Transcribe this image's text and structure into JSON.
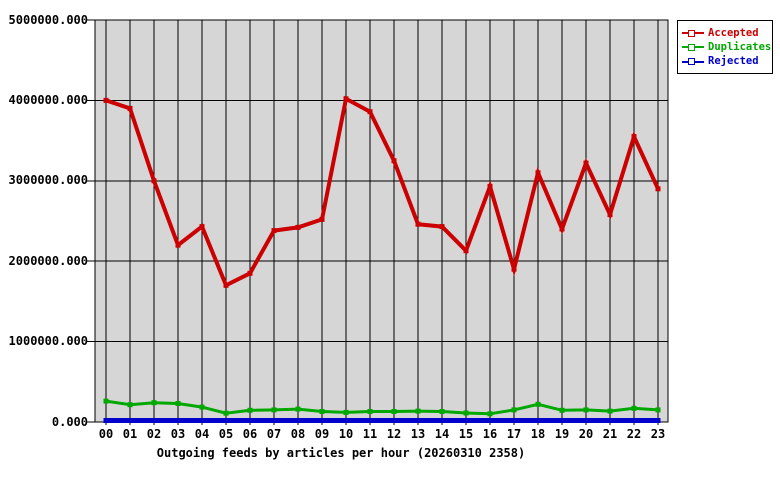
{
  "chart_data": {
    "type": "line",
    "title": "Outgoing feeds by articles per hour (20260310 2358)",
    "xlabel": "",
    "ylabel": "",
    "x": [
      "00",
      "01",
      "02",
      "03",
      "04",
      "05",
      "06",
      "07",
      "08",
      "09",
      "10",
      "11",
      "12",
      "13",
      "14",
      "15",
      "16",
      "17",
      "18",
      "19",
      "20",
      "21",
      "22",
      "23"
    ],
    "series": [
      {
        "name": "Accepted",
        "color": "#cc0000",
        "values": [
          4000000,
          3900000,
          3000000,
          2200000,
          2430000,
          1700000,
          1850000,
          2380000,
          2420000,
          2520000,
          4020000,
          3860000,
          3250000,
          2460000,
          2430000,
          2130000,
          2930000,
          1900000,
          3100000,
          2400000,
          3220000,
          2580000,
          3550000,
          2900000
        ]
      },
      {
        "name": "Duplicates",
        "color": "#00a800",
        "values": [
          260000,
          215000,
          240000,
          230000,
          185000,
          110000,
          145000,
          150000,
          160000,
          130000,
          120000,
          130000,
          130000,
          135000,
          130000,
          112000,
          102000,
          150000,
          220000,
          145000,
          150000,
          135000,
          170000,
          150000
        ]
      },
      {
        "name": "Rejected",
        "color": "#0000cc",
        "values": [
          0,
          0,
          0,
          0,
          0,
          0,
          0,
          0,
          0,
          0,
          0,
          0,
          0,
          0,
          0,
          0,
          0,
          0,
          0,
          0,
          0,
          0,
          0,
          0
        ]
      }
    ],
    "ylim": [
      0,
      5000000
    ],
    "ytick_labels": [
      "0.000",
      "1000000.000",
      "2000000.000",
      "3000000.000",
      "4000000.000",
      "5000000.000"
    ],
    "grid": true,
    "legend_position": "top-right",
    "plot_bg": "#d6d6d6",
    "grid_color": "#000000",
    "text_color": "#000000"
  }
}
